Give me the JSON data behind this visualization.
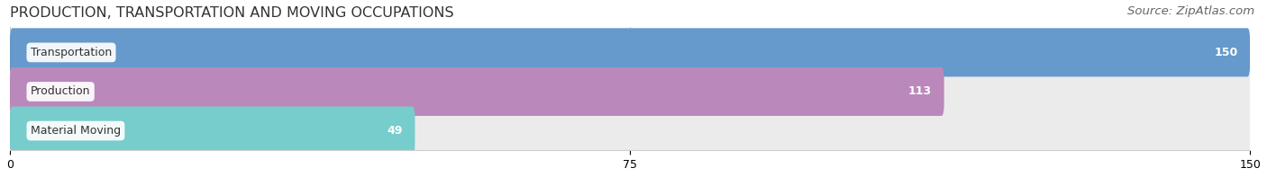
{
  "title": "PRODUCTION, TRANSPORTATION AND MOVING OCCUPATIONS",
  "source": "Source: ZipAtlas.com",
  "categories": [
    "Transportation",
    "Production",
    "Material Moving"
  ],
  "values": [
    150,
    113,
    49
  ],
  "bar_colors": [
    "#6699CC",
    "#BB88BB",
    "#77CCCC"
  ],
  "xlim": [
    0,
    150
  ],
  "xticks": [
    0,
    75,
    150
  ],
  "title_fontsize": 11.5,
  "source_fontsize": 9.5,
  "label_fontsize": 9,
  "value_fontsize": 9,
  "background_color": "#ffffff",
  "bar_background_color": "#ebebeb"
}
